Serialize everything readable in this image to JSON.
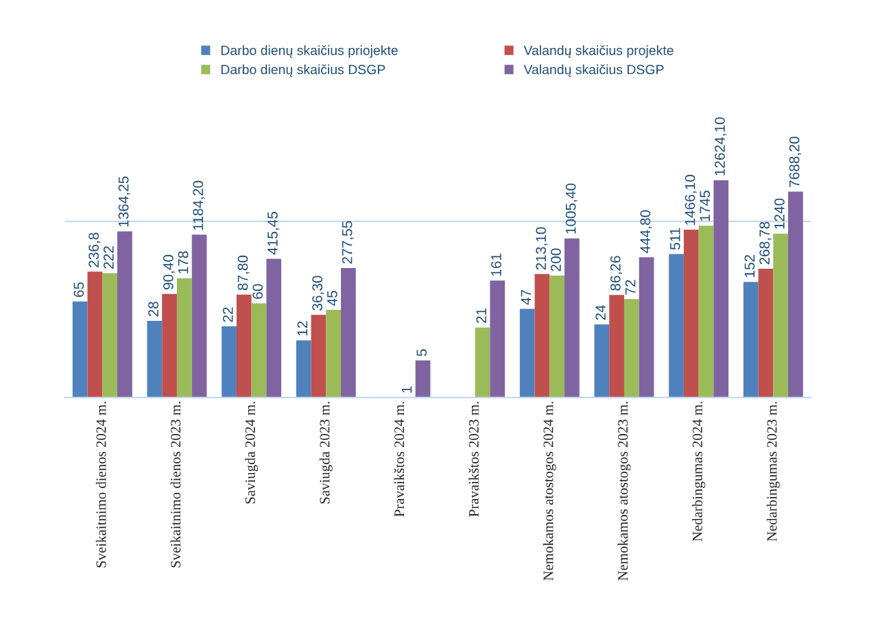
{
  "chart_data": {
    "type": "bar",
    "log": true,
    "ylim": [
      1,
      12624.1
    ],
    "ref_lines": [
      {
        "axis": "y",
        "value": 2113,
        "color": "#c6d9f1"
      }
    ],
    "tick_labels": "x",
    "legend": "top",
    "data_labels": true,
    "categories": [
      "Sveikaitnimo dienos 2024 m.",
      "Sveikaitnimo dienos 2023 m.",
      "Saviugda 2024 m.",
      "Saviugda 2023 m.",
      "Pravaikštos 2024 m.",
      "Pravaikštos 2023 m.",
      "Nemokamos atostogos 2024 m.",
      "Nemokamos atostogos 2023 m.",
      "Nedarbingumas 2024 m.",
      "Nedarbingumas 2023 m."
    ],
    "series": [
      {
        "name": "Darbo dienų skaičius priojekte",
        "color": "#4f81bd",
        "values": [
          65,
          28,
          22,
          12,
          null,
          null,
          47,
          24,
          511,
          152
        ],
        "value_labels": [
          "65",
          "28",
          "22",
          "12",
          null,
          null,
          "47",
          "24",
          "511",
          "152"
        ]
      },
      {
        "name": "Valandų skaičius projekte",
        "color": "#c0504d",
        "values": [
          236.8,
          90.4,
          87.8,
          36.3,
          null,
          null,
          213.1,
          86.26,
          1466.1,
          268.78
        ],
        "value_labels": [
          "236,8",
          "90,40",
          "87,80",
          "36,30",
          null,
          null,
          "213,10",
          "86,26",
          "1466,10",
          "268,78"
        ]
      },
      {
        "name": "Darbo dienų skaičius DSGP",
        "color": "#9bbb59",
        "values": [
          222,
          178,
          60,
          45,
          1,
          21,
          200,
          72,
          1745,
          1240
        ],
        "value_labels": [
          "222",
          "178",
          "60",
          "45",
          "1",
          "21",
          "200",
          "72",
          "1745",
          "1240"
        ]
      },
      {
        "name": "Valandų skaičius DSGP",
        "color": "#8064a2",
        "values": [
          1364.25,
          1184.2,
          415.45,
          277.55,
          5,
          161,
          1005.4,
          444.8,
          12624.1,
          7688.2
        ],
        "value_labels": [
          "1364,25",
          "1184,20",
          "415,45",
          "277,55",
          "5",
          "161",
          "1005,40",
          "444,80",
          "12624,10",
          "7688,20"
        ]
      }
    ]
  }
}
